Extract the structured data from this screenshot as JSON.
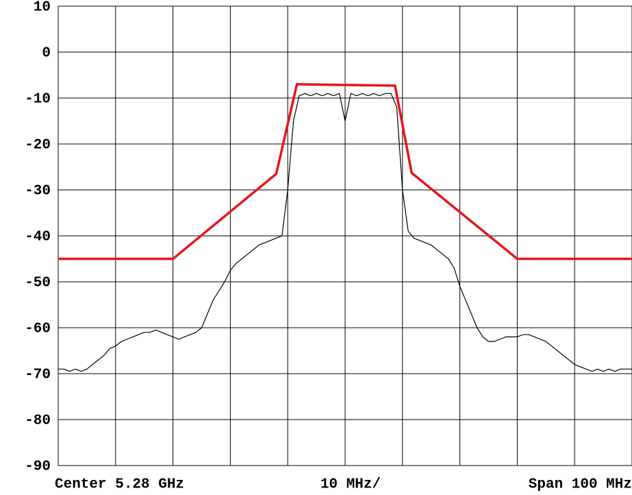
{
  "chart_data": {
    "type": "line",
    "xlabel_left": "Center 5.28 GHz",
    "xlabel_center": "10 MHz/",
    "xlabel_right": "Span 100 MHz",
    "xlim": [
      5.23,
      5.33
    ],
    "xticks": [
      5.23,
      5.24,
      5.25,
      5.26,
      5.27,
      5.28,
      5.29,
      5.3,
      5.31,
      5.32,
      5.33
    ],
    "ylim": [
      -90,
      10
    ],
    "yticks": [
      10,
      0,
      -10,
      -20,
      -30,
      -40,
      -50,
      -60,
      -70,
      -80,
      -90
    ],
    "grid": true,
    "series": [
      {
        "color": "#000000",
        "width": 1.2,
        "x": [
          5.23,
          5.231,
          5.232,
          5.233,
          5.234,
          5.235,
          5.236,
          5.237,
          5.238,
          5.239,
          5.24,
          5.241,
          5.242,
          5.243,
          5.244,
          5.245,
          5.246,
          5.247,
          5.248,
          5.249,
          5.25,
          5.251,
          5.252,
          5.253,
          5.254,
          5.255,
          5.256,
          5.257,
          5.258,
          5.259,
          5.26,
          5.261,
          5.262,
          5.263,
          5.264,
          5.265,
          5.266,
          5.267,
          5.268,
          5.269,
          5.27,
          5.271,
          5.272,
          5.273,
          5.274,
          5.275,
          5.276,
          5.277,
          5.278,
          5.279,
          5.28,
          5.281,
          5.282,
          5.283,
          5.284,
          5.285,
          5.286,
          5.287,
          5.288,
          5.289,
          5.29,
          5.291,
          5.292,
          5.293,
          5.294,
          5.295,
          5.296,
          5.297,
          5.298,
          5.299,
          5.3,
          5.301,
          5.302,
          5.303,
          5.304,
          5.305,
          5.306,
          5.307,
          5.308,
          5.309,
          5.31,
          5.311,
          5.312,
          5.313,
          5.314,
          5.315,
          5.316,
          5.317,
          5.318,
          5.319,
          5.32,
          5.321,
          5.322,
          5.323,
          5.324,
          5.325,
          5.326,
          5.327,
          5.328,
          5.329,
          5.33
        ],
        "values": [
          -69,
          -69,
          -69.5,
          -69,
          -69.5,
          -69,
          -68,
          -67,
          -66,
          -64.5,
          -64,
          -63,
          -62.5,
          -62,
          -61.5,
          -61,
          -61,
          -60.5,
          -61,
          -61.5,
          -62,
          -62.5,
          -62,
          -61.5,
          -61,
          -60,
          -57,
          -54,
          -52,
          -50,
          -47.5,
          -46,
          -45,
          -44,
          -43,
          -42,
          -41.5,
          -41,
          -40.5,
          -40,
          -30,
          -15,
          -9.5,
          -9,
          -9.5,
          -9,
          -9.5,
          -9,
          -9.5,
          -9,
          -15,
          -9,
          -9.5,
          -9,
          -9.5,
          -9,
          -9.5,
          -9,
          -9,
          -12,
          -30,
          -39,
          -40.5,
          -41,
          -41.5,
          -42,
          -43,
          -44,
          -45,
          -47,
          -51,
          -54,
          -57,
          -60,
          -62,
          -63,
          -63,
          -62.5,
          -62,
          -62,
          -62,
          -61.5,
          -61.5,
          -62,
          -62.5,
          -63,
          -64,
          -65,
          -66,
          -67,
          -68,
          -68.5,
          -69,
          -69.5,
          -69,
          -69.5,
          -69,
          -69.5,
          -69,
          -69,
          -69
        ]
      },
      {
        "color": "#e8141b",
        "width": 3.5,
        "x": [
          5.23,
          5.25,
          5.268,
          5.2716,
          5.2887,
          5.2916,
          5.31,
          5.33
        ],
        "values": [
          -45,
          -45,
          -26.5,
          -7,
          -7.3,
          -26.3,
          -45,
          -45
        ]
      }
    ]
  }
}
